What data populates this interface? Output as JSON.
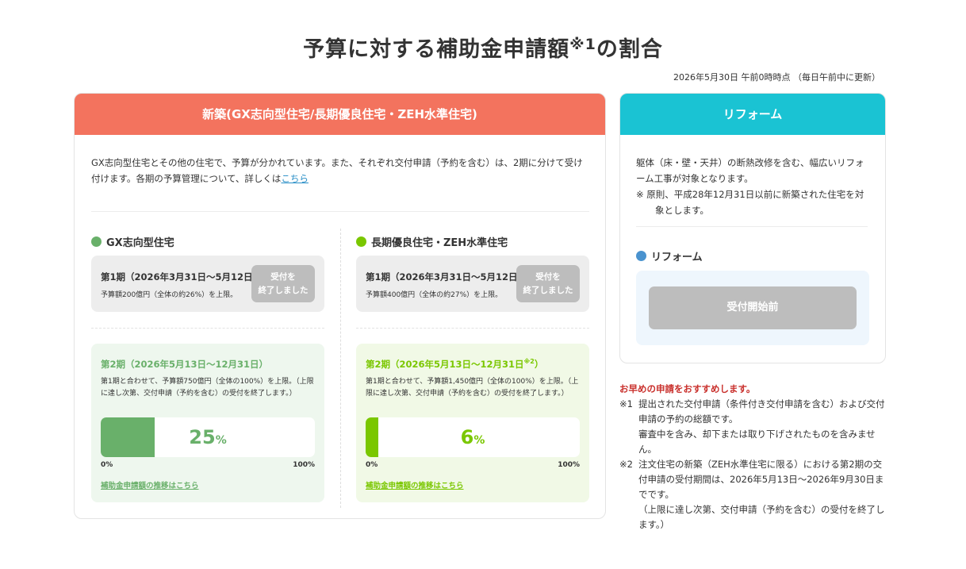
{
  "header": {
    "title": "予算に対する補助金申請額",
    "title_sup": "※1",
    "title_suffix": "の割合",
    "timestamp": "2026年5月30日 午前0時時点 （毎日午前中に更新）"
  },
  "new_build": {
    "header": "新築(GX志向型住宅/長期優良住宅・ZEH水準住宅)",
    "intro": "GX志向型住宅とその他の住宅で、予算が分かれています。また、それぞれ交付申請（予約を含む）は、2期に分けて受け付けます。各期の予算管理について、詳しくは",
    "intro_link": "こちら",
    "gx": {
      "title": "GX志向型住宅",
      "phase1_title": "第1期（2026年3月31日〜5月12日）",
      "phase1_note": "予算額200億円（全体の約26%）を上限。",
      "phase1_status_line1": "受付を",
      "phase1_status_line2": "終了しました",
      "phase2_title": "第2期（2026年5月13日〜12月31日）",
      "phase2_note": "第1期と合わせて、予算額750億円（全体の100%）を上限。（上限に達し次第、交付申請（予約を含む）の受付を終了します。）",
      "progress_value": "25",
      "progress_unit": "%",
      "progress_fraction": 0.25,
      "tick_min": "0%",
      "tick_max": "100%",
      "trend_link": "補助金申請額の推移はこちら"
    },
    "zeh": {
      "title": "長期優良住宅・ZEH水準住宅",
      "phase1_title": "第1期（2026年3月31日〜5月12日）",
      "phase1_note": "予算額400億円（全体の約27%）を上限。",
      "phase1_status_line1": "受付を",
      "phase1_status_line2": "終了しました",
      "phase2_title": "第2期（2026年5月13日〜12月31日",
      "phase2_title_sup": "※2",
      "phase2_title_end": "）",
      "phase2_note": "第1期と合わせて、予算額1,450億円（全体の100%）を上限。（上限に達し次第、交付申請（予約を含む）の受付を終了します。）",
      "progress_value": "6",
      "progress_unit": "%",
      "progress_fraction": 0.06,
      "tick_min": "0%",
      "tick_max": "100%",
      "trend_link": "補助金申請額の推移はこちら"
    }
  },
  "reform": {
    "header": "リフォーム",
    "desc": "躯体（床・壁・天井）の断熱改修を含む、幅広いリフォーム工事が対象となります。",
    "note": "※ 原則、平成28年12月31日以前に新築された住宅を対象とします。",
    "section_title": "リフォーム",
    "status": "受付開始前"
  },
  "notes": {
    "headline": "お早めの申請をおすすめします。",
    "items": [
      {
        "mark": "※1",
        "text": "提出された交付申請（条件付き交付申請を含む）および交付申請の予約の総額です。"
      },
      {
        "mark": "",
        "text": "審査中を含み、却下または取り下げされたものを含みません。"
      },
      {
        "mark": "※2",
        "text": "注文住宅の新築（ZEH水準住宅に限る）における第2期の交付申請の受付期間は、2026年5月13日〜2026年9月30日までです。"
      },
      {
        "mark": "",
        "text": "（上限に達し次第、交付申請（予約を含む）の受付を終了します。）"
      }
    ]
  },
  "colors": {
    "new_header": "#f3735e",
    "reform_header": "#1ac3d3",
    "gx_green": "#69b06a",
    "zeh_green": "#7ac700",
    "reform_dot": "#4a93cf",
    "notice_red": "#c9302c"
  }
}
